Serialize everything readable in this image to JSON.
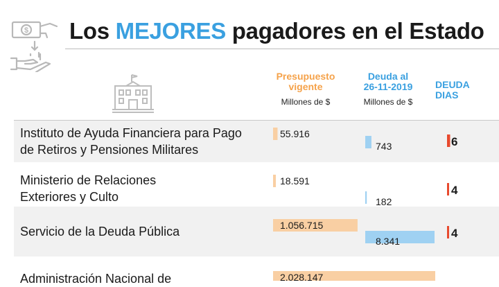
{
  "header": {
    "title_part1": "Los ",
    "title_highlight": "MEJORES",
    "title_part2": " pagadores en el Estado",
    "highlight_color": "#3aa0e0"
  },
  "columns": {
    "presupuesto": {
      "label_line1": "Presupuesto",
      "label_line2": "vigente",
      "unit": "Millones de $",
      "color": "#f5a24a"
    },
    "deuda": {
      "label_line1": "Deuda al",
      "label_line2": "26-11-2019",
      "unit": "Millones de $",
      "color": "#3aa0e0"
    },
    "dias": {
      "label_line1": "DEUDA",
      "label_line2": "DIAS",
      "color": "#3aa0e0"
    }
  },
  "icons": {
    "left": "money-hand-icon",
    "building": "government-building-icon"
  },
  "chart_data": {
    "type": "table",
    "title": "Los MEJORES pagadores en el Estado",
    "rows": [
      {
        "label_line1": "Instituto de Ayuda Financiera para Pago",
        "label_line2": "de Retiros y Pensiones Militares",
        "presupuesto": 55916,
        "presupuesto_label": "55.916",
        "deuda": 743,
        "deuda_label": "743",
        "dias": 6,
        "dias_label": "6"
      },
      {
        "label_line1": "Ministerio de Relaciones",
        "label_line2": "Exteriores y Culto",
        "presupuesto": 18591,
        "presupuesto_label": "18.591",
        "deuda": 182,
        "deuda_label": "182",
        "dias": 4,
        "dias_label": "4"
      },
      {
        "label_line1": "Servicio de la Deuda Pública",
        "label_line2": "",
        "presupuesto": 1056715,
        "presupuesto_label": "1.056.715",
        "deuda": 8341,
        "deuda_label": "8.341",
        "dias": 4,
        "dias_label": "4"
      },
      {
        "label_line1": "Administración Nacional de",
        "label_line2": "",
        "presupuesto": 2028147,
        "presupuesto_label": "2.028.147",
        "deuda": null,
        "deuda_label": "",
        "dias": null,
        "dias_label": ""
      }
    ],
    "colors": {
      "presupuesto_bar": "#f9cfa3",
      "deuda_bar": "#9fd1f2",
      "dias_bar": "#e84a2e"
    }
  }
}
